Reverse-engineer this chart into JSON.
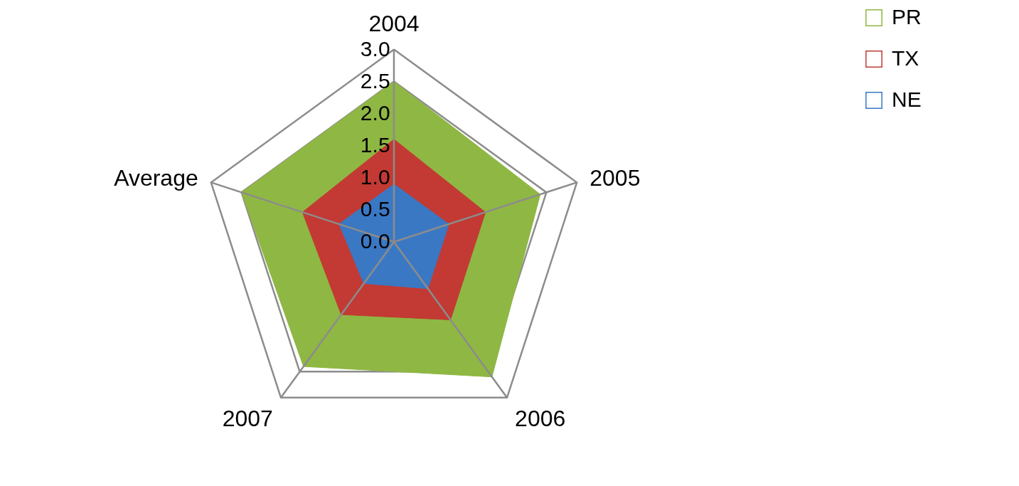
{
  "chart_data": {
    "type": "radar",
    "categories": [
      "2004",
      "2005",
      "2006",
      "2007",
      "Average"
    ],
    "series": [
      {
        "name": "PR",
        "color": "#8fb743",
        "values": [
          2.5,
          2.4,
          2.6,
          2.4,
          2.5
        ]
      },
      {
        "name": "TX",
        "color": "#c23a33",
        "values": [
          1.6,
          1.5,
          1.5,
          1.4,
          1.5
        ]
      },
      {
        "name": "NE",
        "color": "#3a78c4",
        "values": [
          0.9,
          0.9,
          0.9,
          0.8,
          0.9
        ]
      }
    ],
    "ylim": [
      0,
      3
    ],
    "yticks": [
      {
        "value": 0,
        "label": "0.0"
      },
      {
        "value": 0.5,
        "label": "0.5"
      },
      {
        "value": 1,
        "label": "1.0"
      },
      {
        "value": 1.5,
        "label": "1.5"
      },
      {
        "value": 2,
        "label": "2.0"
      },
      {
        "value": 2.5,
        "label": "2.5"
      },
      {
        "value": 3,
        "label": "3.0"
      }
    ],
    "grid": true,
    "legend": "right"
  }
}
